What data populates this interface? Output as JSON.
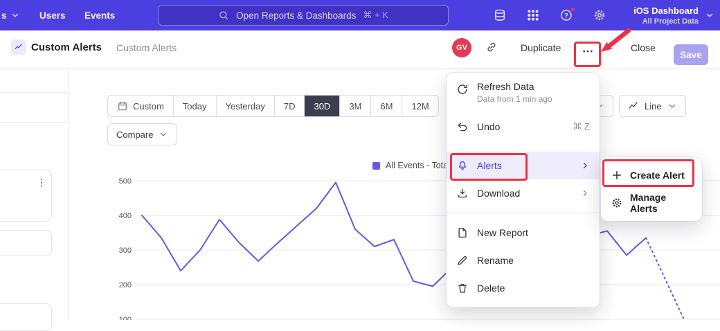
{
  "colors": {
    "nav_bg": "#4C3FDF",
    "accent": "#4C3FE0",
    "annotation_red": "#EE3147",
    "selected_range_bg": "#3A3F50",
    "save_button_bg": "#A8A2F0",
    "avatar_bg": "#E23A56"
  },
  "nav": {
    "partial_item": "s",
    "items": [
      "Users",
      "Events"
    ],
    "search_placeholder": "Open Reports & Dashboards",
    "search_shortcut": "⌘ + K",
    "project_title": "iOS Dashboard",
    "project_subtitle": "All Project Data"
  },
  "header": {
    "page_title": "Custom Alerts",
    "breadcrumb": "Custom Alerts",
    "avatar_initials": "GV",
    "duplicate": "Duplicate",
    "close": "Close",
    "save": "Save"
  },
  "toolbar": {
    "ranges": [
      "Custom",
      "Today",
      "Yesterday",
      "7D",
      "30D",
      "3M",
      "6M",
      "12M"
    ],
    "selected": "30D",
    "compare": "Compare",
    "chart_type": "Line"
  },
  "menu": {
    "refresh": {
      "label": "Refresh Data",
      "sub": "Data from 1 min ago"
    },
    "undo": {
      "label": "Undo",
      "shortcut": "⌘ Z"
    },
    "alerts": {
      "label": "Alerts"
    },
    "download": {
      "label": "Download"
    },
    "new_report": {
      "label": "New Report"
    },
    "rename": {
      "label": "Rename"
    },
    "delete": {
      "label": "Delete"
    }
  },
  "submenu": {
    "create": "Create Alert",
    "manage": "Manage Alerts"
  },
  "chart_data": {
    "type": "line",
    "legend": "All Events - Total",
    "yticks": [
      500,
      400,
      300,
      200,
      100
    ],
    "ylim": [
      100,
      500
    ],
    "grid": true,
    "color": "#6459E6",
    "values": [
      400,
      335,
      240,
      300,
      388,
      322,
      268,
      320,
      370,
      420,
      495,
      360,
      310,
      330,
      210,
      195,
      250,
      280,
      240,
      300,
      330,
      290,
      340,
      340,
      355,
      285,
      335,
      215,
      95
    ],
    "dashed_tail_start_index": 26
  }
}
